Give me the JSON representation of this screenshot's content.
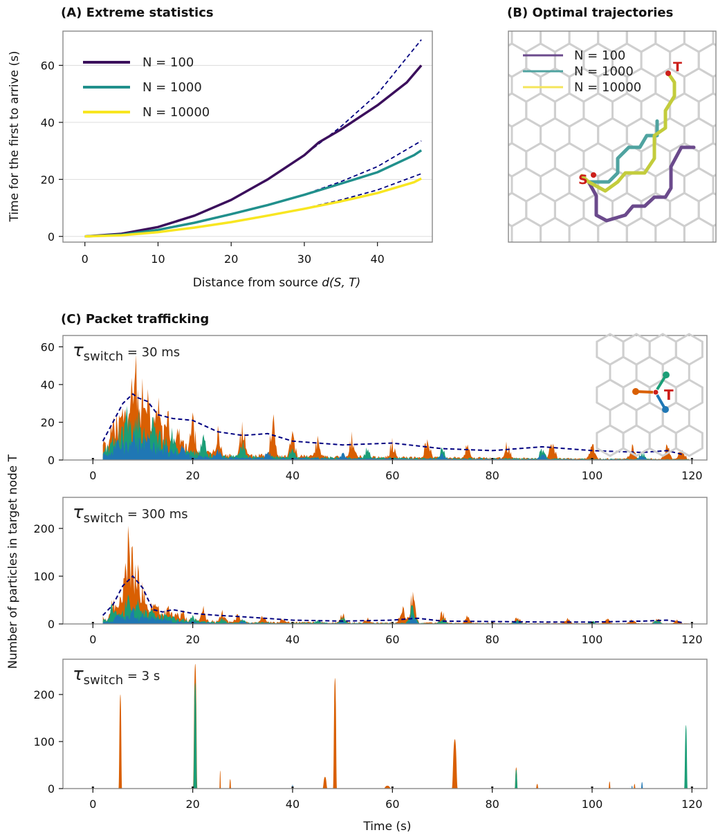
{
  "panel_titles": {
    "a": "(A)  Extreme statistics",
    "b": "(B)  Optimal trajectories",
    "c": "(C) Packet trafficking"
  },
  "chart_data": [
    {
      "id": "A",
      "type": "line",
      "title": "Extreme statistics",
      "xlabel_prefix": "Distance from source ",
      "xlabel_italic": "d(S, T)",
      "ylabel": "Time for the first to arrive (s)",
      "xlim": [
        -3,
        47.5
      ],
      "ylim": [
        -2,
        72
      ],
      "xticks": [
        0,
        10,
        20,
        30,
        40
      ],
      "yticks": [
        0,
        20,
        40,
        60
      ],
      "grid": true,
      "legend_position": "top-left",
      "series": [
        {
          "name": "N = 100",
          "color": "#3b0f5c",
          "x": [
            0,
            5,
            10,
            15,
            20,
            25,
            30,
            32,
            35,
            40,
            44,
            46
          ],
          "y": [
            0,
            0.9,
            3.3,
            7.3,
            12.8,
            20.0,
            28.5,
            33.0,
            37.5,
            46.0,
            54.0,
            60.0
          ]
        },
        {
          "name": "N = 1000",
          "color": "#21908c",
          "x": [
            0,
            5,
            10,
            15,
            20,
            25,
            30,
            35,
            40,
            45,
            46
          ],
          "y": [
            0,
            0.6,
            2.3,
            4.8,
            7.8,
            11.0,
            14.6,
            18.5,
            22.5,
            28.5,
            30.2
          ]
        },
        {
          "name": "N = 10000",
          "color": "#f8e621",
          "x": [
            0,
            5,
            10,
            15,
            20,
            25,
            30,
            35,
            40,
            45,
            46
          ],
          "y": [
            0,
            0.4,
            1.5,
            3.1,
            5.0,
            7.3,
            9.7,
            12.3,
            15.2,
            19.0,
            20.3
          ]
        }
      ],
      "fits": [
        {
          "style": "dashed",
          "color": "#000080",
          "x": [
            0,
            5,
            10,
            15,
            20,
            25,
            30,
            35,
            40,
            46
          ],
          "y": [
            0,
            0.9,
            3.3,
            7.3,
            12.8,
            20.0,
            28.5,
            38.5,
            50.0,
            69.0
          ]
        },
        {
          "style": "dashed",
          "color": "#000080",
          "x": [
            0,
            5,
            10,
            15,
            20,
            25,
            30,
            35,
            40,
            46
          ],
          "y": [
            0,
            0.6,
            2.3,
            4.8,
            7.8,
            11.0,
            14.7,
            19.2,
            24.5,
            33.5
          ]
        },
        {
          "style": "dashed",
          "color": "#000080",
          "x": [
            0,
            5,
            10,
            15,
            20,
            25,
            30,
            35,
            40,
            46
          ],
          "y": [
            0,
            0.4,
            1.5,
            3.1,
            5.0,
            7.3,
            9.8,
            12.8,
            16.3,
            22.0
          ]
        }
      ]
    },
    {
      "id": "B",
      "type": "diagram",
      "title": "Optimal trajectories",
      "legend_position": "top-left",
      "series": [
        {
          "name": "N = 100",
          "color": "#6b4a8c"
        },
        {
          "name": "N = 1000",
          "color": "#4fa3a0"
        },
        {
          "name": "N = 10000",
          "color": "#f4e55a"
        }
      ],
      "source_label": "S",
      "target_label": "T",
      "marker_color": "#cc1f1a"
    },
    {
      "id": "C1",
      "type": "area",
      "title": "Packet trafficking",
      "label_prefix": "τ",
      "label_sub": "switch",
      "label_value": " = 30 ms",
      "xlim": [
        -6,
        123
      ],
      "ylim": [
        0,
        66
      ],
      "xticks": [
        0,
        20,
        40,
        60,
        80,
        100,
        120
      ],
      "yticks": [
        0,
        20,
        40,
        60
      ],
      "colors": {
        "orange": "#d95f02",
        "green": "#1b9e77",
        "blue": "#1f77b4",
        "mean": "#000080"
      },
      "series": {
        "orange_peaks": [
          [
            4,
            24
          ],
          [
            6,
            42
          ],
          [
            8,
            54
          ],
          [
            8.5,
            63
          ],
          [
            10,
            44
          ],
          [
            11,
            38
          ],
          [
            13,
            60
          ],
          [
            15,
            30
          ],
          [
            17,
            24
          ],
          [
            20,
            26
          ],
          [
            25,
            20
          ],
          [
            30,
            22
          ],
          [
            36,
            28
          ],
          [
            40,
            16
          ],
          [
            45,
            14
          ],
          [
            52,
            17
          ],
          [
            60,
            12
          ],
          [
            67,
            14
          ],
          [
            75,
            10
          ],
          [
            83,
            11
          ],
          [
            92,
            12
          ],
          [
            100,
            10
          ],
          [
            108,
            9
          ],
          [
            115,
            9
          ],
          [
            118,
            8
          ]
        ],
        "green_peaks": [
          [
            4,
            16
          ],
          [
            7,
            30
          ],
          [
            9,
            36
          ],
          [
            12,
            25
          ],
          [
            16,
            18
          ],
          [
            22,
            16
          ],
          [
            30,
            12
          ],
          [
            40,
            10
          ],
          [
            55,
            8
          ],
          [
            70,
            7
          ],
          [
            90,
            7
          ],
          [
            110,
            5
          ]
        ],
        "blue_peaks": [
          [
            5,
            10
          ],
          [
            8,
            16
          ],
          [
            11,
            14
          ],
          [
            18,
            9
          ],
          [
            25,
            8
          ],
          [
            35,
            6
          ],
          [
            50,
            5
          ],
          [
            70,
            4
          ],
          [
            90,
            4
          ],
          [
            110,
            3
          ]
        ],
        "mean_x": [
          2,
          4,
          6,
          8,
          9,
          11,
          13,
          16,
          20,
          25,
          30,
          35,
          40,
          50,
          60,
          70,
          80,
          90,
          100,
          110,
          115,
          118
        ],
        "mean_y": [
          10,
          20,
          30,
          35,
          33,
          31,
          24,
          22,
          21,
          15,
          13,
          14,
          10,
          8,
          9,
          6,
          5,
          7,
          5,
          4,
          5,
          3
        ]
      }
    },
    {
      "id": "C2",
      "type": "area",
      "label_prefix": "τ",
      "label_sub": "switch",
      "label_value": " = 300 ms",
      "xlim": [
        -6,
        123
      ],
      "ylim": [
        0,
        265
      ],
      "xticks": [
        0,
        20,
        40,
        60,
        80,
        100,
        120
      ],
      "yticks": [
        0,
        100,
        200
      ],
      "series": {
        "orange_peaks": [
          [
            4,
            60
          ],
          [
            6,
            110
          ],
          [
            7,
            235
          ],
          [
            8,
            200
          ],
          [
            9,
            160
          ],
          [
            10,
            90
          ],
          [
            12,
            50
          ],
          [
            15,
            40
          ],
          [
            18,
            30
          ],
          [
            22,
            40
          ],
          [
            26,
            30
          ],
          [
            29,
            25
          ],
          [
            34,
            20
          ],
          [
            38,
            15
          ],
          [
            50,
            25
          ],
          [
            55,
            15
          ],
          [
            62,
            40
          ],
          [
            64,
            75
          ],
          [
            70,
            30
          ],
          [
            75,
            20
          ],
          [
            85,
            18
          ],
          [
            95,
            14
          ],
          [
            103,
            12
          ],
          [
            108,
            10
          ],
          [
            113,
            15
          ],
          [
            117,
            10
          ]
        ],
        "green_peaks": [
          [
            4,
            50
          ],
          [
            7,
            80
          ],
          [
            9,
            60
          ],
          [
            12,
            35
          ],
          [
            16,
            25
          ],
          [
            20,
            20
          ],
          [
            26,
            15
          ],
          [
            30,
            12
          ],
          [
            45,
            10
          ],
          [
            50,
            18
          ],
          [
            64,
            45
          ],
          [
            70,
            15
          ],
          [
            85,
            10
          ],
          [
            100,
            8
          ],
          [
            113,
            10
          ]
        ],
        "blue_peaks": [
          [
            5,
            30
          ],
          [
            8,
            40
          ],
          [
            10,
            25
          ],
          [
            14,
            15
          ],
          [
            20,
            10
          ],
          [
            30,
            8
          ],
          [
            50,
            6
          ],
          [
            64,
            20
          ],
          [
            85,
            5
          ],
          [
            113,
            4
          ]
        ],
        "mean_x": [
          2,
          4,
          6,
          8,
          10,
          12,
          14,
          16,
          20,
          25,
          30,
          40,
          50,
          60,
          65,
          70,
          80,
          90,
          100,
          110,
          115,
          118
        ],
        "mean_y": [
          18,
          40,
          80,
          100,
          75,
          30,
          25,
          30,
          22,
          18,
          15,
          8,
          6,
          8,
          12,
          6,
          5,
          4,
          4,
          6,
          8,
          3
        ]
      }
    },
    {
      "id": "C3",
      "type": "area",
      "label_prefix": "τ",
      "label_sub": "switch",
      "label_value": " = 3 s",
      "xlabel": "Time  (s)",
      "xlim": [
        -6,
        123
      ],
      "ylim": [
        0,
        275
      ],
      "xticks": [
        0,
        20,
        40,
        60,
        80,
        100,
        120
      ],
      "yticks": [
        0,
        100,
        200
      ],
      "series": {
        "orange_blocks": [
          [
            5.5,
            200,
            0.35
          ],
          [
            20.5,
            265,
            0.45
          ],
          [
            25.5,
            38,
            0.15
          ],
          [
            27.5,
            20,
            0.2
          ],
          [
            46.5,
            25,
            0.5
          ],
          [
            48.5,
            235,
            0.4
          ],
          [
            59,
            6,
            0.8
          ],
          [
            72.5,
            105,
            0.6
          ],
          [
            84.8,
            45,
            0.3
          ],
          [
            89,
            10,
            0.25
          ],
          [
            103.5,
            15,
            0.2
          ],
          [
            108.5,
            10,
            0.2
          ]
        ],
        "green_blocks": [
          [
            20.5,
            225,
            0.4
          ],
          [
            84.8,
            40,
            0.3
          ],
          [
            118.8,
            135,
            0.35
          ]
        ],
        "blue_blocks": [
          [
            40,
            8,
            0.15
          ],
          [
            108,
            6,
            0.15
          ],
          [
            110,
            14,
            0.2
          ]
        ]
      }
    }
  ],
  "shared": {
    "ylabel_c": "Number of particles in target node T",
    "inset_target_label": "T"
  }
}
